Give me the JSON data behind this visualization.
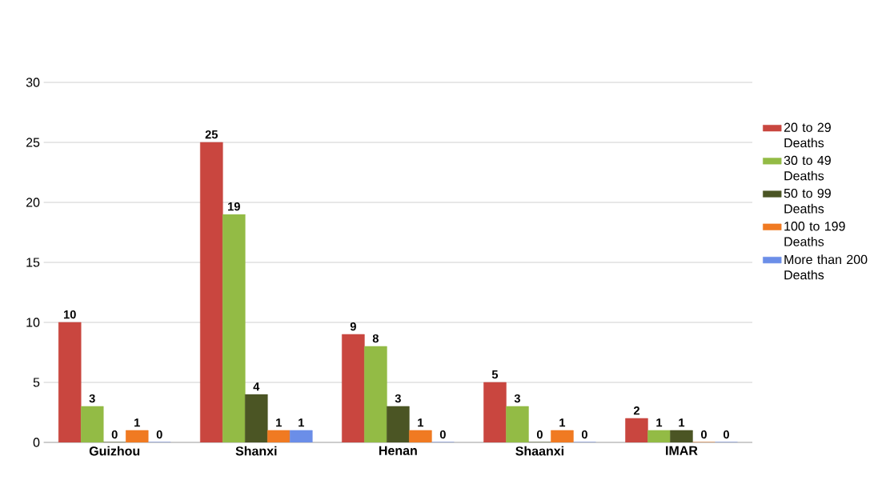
{
  "chart_data": {
    "type": "bar",
    "categories": [
      "Guizhou",
      "Shanxi",
      "Henan",
      "Shaanxi",
      "IMAR"
    ],
    "series": [
      {
        "name": "20 to 29 Deaths",
        "color": "#c9463f",
        "values": [
          10,
          25,
          9,
          5,
          2
        ]
      },
      {
        "name": "30 to 49 Deaths",
        "color": "#93bb45",
        "values": [
          3,
          19,
          8,
          3,
          1
        ]
      },
      {
        "name": "50 to 99 Deaths",
        "color": "#4b5524",
        "values": [
          0,
          4,
          3,
          0,
          1
        ]
      },
      {
        "name": "100 to 199 Deaths",
        "color": "#f07a22",
        "values": [
          1,
          1,
          1,
          1,
          0
        ]
      },
      {
        "name": "More than 200 Deaths",
        "color": "#6b8ee8",
        "values": [
          0,
          1,
          0,
          0,
          0
        ]
      }
    ],
    "ylim": [
      0,
      30
    ],
    "yticks": [
      0,
      5,
      10,
      15,
      20,
      25,
      30
    ],
    "grid": "y",
    "legend": "right",
    "data_labels": true
  }
}
